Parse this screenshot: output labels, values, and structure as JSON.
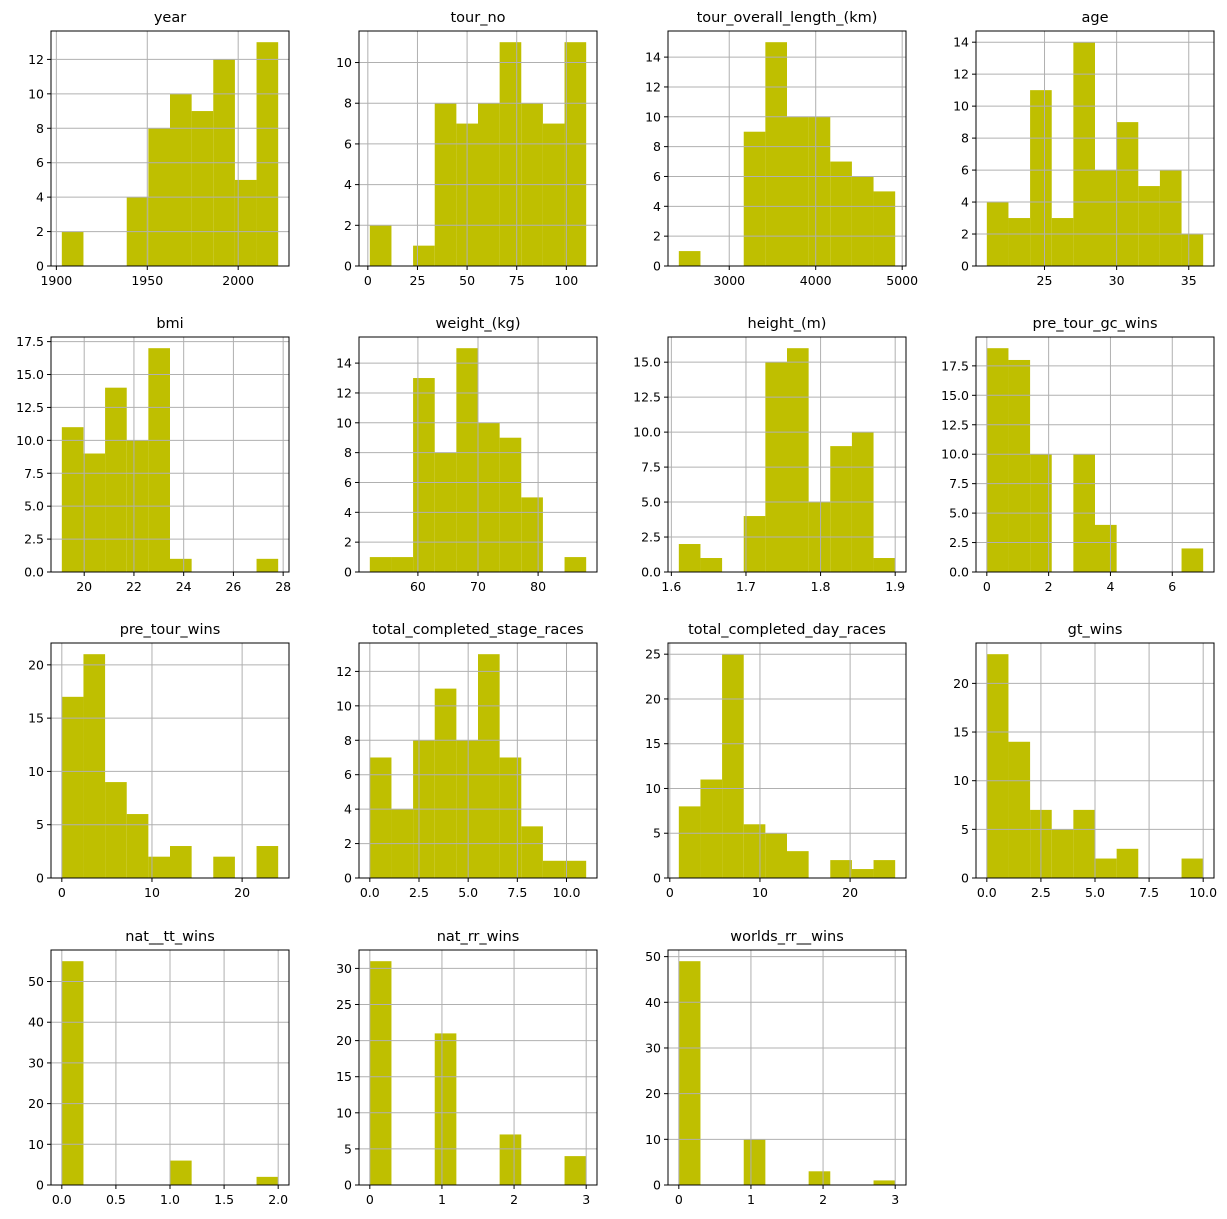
{
  "style": {
    "bar_color": "#bfbf00",
    "grid_color": "#b0b0b0",
    "axis_color": "#000000"
  },
  "chart_data": [
    {
      "type": "bar",
      "title": "year",
      "range": [
        1903,
        2022
      ],
      "counts": [
        2,
        0,
        0,
        4,
        8,
        10,
        9,
        12,
        5,
        13
      ],
      "xticks": [
        "1900",
        "1950",
        "2000"
      ],
      "yticks": [
        "0",
        "2",
        "4",
        "6",
        "8",
        "10",
        "12"
      ],
      "grid": true
    },
    {
      "type": "bar",
      "title": "tour_no",
      "range": [
        1,
        110
      ],
      "counts": [
        2,
        0,
        1,
        8,
        7,
        8,
        11,
        8,
        7,
        11
      ],
      "xticks": [
        "0",
        "25",
        "50",
        "75",
        "100"
      ],
      "yticks": [
        "0",
        "2",
        "4",
        "6",
        "8",
        "10"
      ],
      "grid": true
    },
    {
      "type": "bar",
      "title": "tour_overall_length_(km)",
      "range": [
        2417,
        4919
      ],
      "counts": [
        1,
        0,
        0,
        9,
        15,
        10,
        10,
        7,
        6,
        5
      ],
      "xticks": [
        "3000",
        "4000",
        "5000"
      ],
      "yticks": [
        "0",
        "2",
        "4",
        "6",
        "8",
        "10",
        "12",
        "14"
      ],
      "grid": true
    },
    {
      "type": "bar",
      "title": "age",
      "range": [
        21,
        36
      ],
      "counts": [
        4,
        3,
        11,
        3,
        14,
        6,
        9,
        5,
        6,
        2
      ],
      "xticks": [
        "25",
        "30",
        "35"
      ],
      "yticks": [
        "0",
        "2",
        "4",
        "6",
        "8",
        "10",
        "12",
        "14"
      ],
      "grid": true
    },
    {
      "type": "bar",
      "title": "bmi",
      "range": [
        19.1,
        27.8
      ],
      "counts": [
        11,
        9,
        14,
        10,
        17,
        1,
        0,
        0,
        0,
        1
      ],
      "xticks": [
        "20",
        "22",
        "24",
        "26",
        "28"
      ],
      "yticks": [
        "0.0",
        "2.5",
        "5.0",
        "7.5",
        "10.0",
        "12.5",
        "15.0",
        "17.5"
      ],
      "grid": true
    },
    {
      "type": "bar",
      "title": "weight_(kg)",
      "range": [
        52,
        88
      ],
      "counts": [
        1,
        1,
        13,
        8,
        15,
        10,
        9,
        5,
        0,
        1
      ],
      "xticks": [
        "60",
        "70",
        "80"
      ],
      "yticks": [
        "0",
        "2",
        "4",
        "6",
        "8",
        "10",
        "12",
        "14"
      ],
      "grid": true
    },
    {
      "type": "bar",
      "title": "height_(m)",
      "range": [
        1.61,
        1.9
      ],
      "counts": [
        2,
        1,
        0,
        4,
        15,
        16,
        5,
        9,
        10,
        1
      ],
      "xticks": [
        "1.6",
        "1.7",
        "1.8",
        "1.9"
      ],
      "yticks": [
        "0.0",
        "2.5",
        "5.0",
        "7.5",
        "10.0",
        "12.5",
        "15.0"
      ],
      "grid": true
    },
    {
      "type": "bar",
      "title": "pre_tour_gc_wins",
      "range": [
        0,
        7
      ],
      "counts": [
        19,
        18,
        10,
        0,
        10,
        4,
        0,
        0,
        0,
        2
      ],
      "xticks": [
        "0",
        "2",
        "4",
        "6"
      ],
      "yticks": [
        "0.0",
        "2.5",
        "5.0",
        "7.5",
        "10.0",
        "12.5",
        "15.0",
        "17.5"
      ],
      "grid": true
    },
    {
      "type": "bar",
      "title": "pre_tour_wins",
      "range": [
        0,
        24
      ],
      "counts": [
        17,
        21,
        9,
        6,
        2,
        3,
        0,
        2,
        0,
        3
      ],
      "xticks": [
        "0",
        "10",
        "20"
      ],
      "yticks": [
        "0",
        "5",
        "10",
        "15",
        "20"
      ],
      "grid": true
    },
    {
      "type": "bar",
      "title": "total_completed_stage_races",
      "range": [
        0,
        11
      ],
      "counts": [
        7,
        4,
        8,
        11,
        8,
        13,
        7,
        3,
        1,
        1
      ],
      "xticks": [
        "0.0",
        "2.5",
        "5.0",
        "7.5",
        "10.0"
      ],
      "yticks": [
        "0",
        "2",
        "4",
        "6",
        "8",
        "10",
        "12"
      ],
      "grid": true
    },
    {
      "type": "bar",
      "title": "total_completed_day_races",
      "range": [
        1,
        25
      ],
      "counts": [
        8,
        11,
        25,
        6,
        5,
        3,
        0,
        2,
        1,
        2
      ],
      "xticks": [
        "0",
        "10",
        "20"
      ],
      "yticks": [
        "0",
        "5",
        "10",
        "15",
        "20",
        "25"
      ],
      "grid": true
    },
    {
      "type": "bar",
      "title": "gt_wins",
      "range": [
        0,
        10
      ],
      "counts": [
        23,
        14,
        7,
        5,
        7,
        2,
        3,
        0,
        0,
        2
      ],
      "xticks": [
        "0.0",
        "2.5",
        "5.0",
        "7.5",
        "10.0"
      ],
      "yticks": [
        "0",
        "5",
        "10",
        "15",
        "20"
      ],
      "grid": true
    },
    {
      "type": "bar",
      "title": "nat__tt_wins",
      "range": [
        0,
        2
      ],
      "counts": [
        55,
        0,
        0,
        0,
        0,
        6,
        0,
        0,
        0,
        2
      ],
      "xticks": [
        "0.0",
        "0.5",
        "1.0",
        "1.5",
        "2.0"
      ],
      "yticks": [
        "0",
        "10",
        "20",
        "30",
        "40",
        "50"
      ],
      "grid": true
    },
    {
      "type": "bar",
      "title": "nat_rr_wins",
      "range": [
        0,
        3
      ],
      "counts": [
        31,
        0,
        0,
        21,
        0,
        0,
        7,
        0,
        0,
        4
      ],
      "xticks": [
        "0",
        "1",
        "2",
        "3"
      ],
      "yticks": [
        "0",
        "5",
        "10",
        "15",
        "20",
        "25",
        "30"
      ],
      "grid": true
    },
    {
      "type": "bar",
      "title": "worlds_rr__wins",
      "range": [
        0,
        3
      ],
      "counts": [
        49,
        0,
        0,
        10,
        0,
        0,
        3,
        0,
        0,
        1
      ],
      "xticks": [
        "0",
        "1",
        "2",
        "3"
      ],
      "yticks": [
        "0",
        "10",
        "20",
        "30",
        "40",
        "50"
      ],
      "grid": true
    }
  ]
}
